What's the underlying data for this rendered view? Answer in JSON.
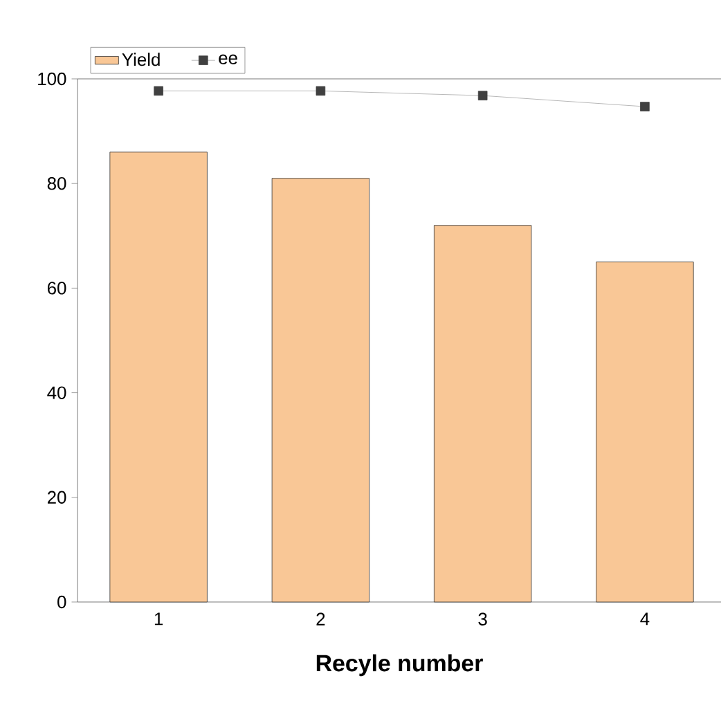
{
  "chart_data": {
    "type": "bar",
    "xlabel": "Recyle number",
    "categories": [
      "1",
      "2",
      "3",
      "4"
    ],
    "series": [
      {
        "name": "Yield",
        "color": "#f9c796",
        "values": [
          86,
          81,
          72,
          65
        ]
      },
      {
        "name": "ee",
        "type": "line",
        "color": "#404040",
        "values": [
          97.7,
          97.7,
          96.8,
          94.7
        ],
        "marker": "square"
      }
    ],
    "ylim": [
      0,
      100
    ],
    "yticks": [
      0,
      20,
      40,
      60,
      80,
      100
    ],
    "legend": "top left",
    "grid": false
  }
}
